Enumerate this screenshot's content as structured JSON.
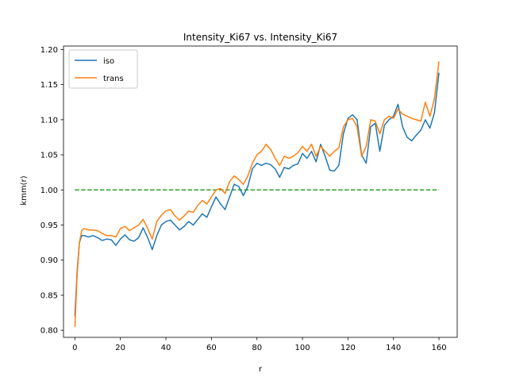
{
  "chart_data": {
    "type": "line",
    "title": "Intensity_Ki67 vs. Intensity_Ki67",
    "xlabel": "r",
    "ylabel": "kmm(r)",
    "xlim": [
      -5,
      168
    ],
    "ylim": [
      0.79,
      1.205
    ],
    "xticks": [
      0,
      20,
      40,
      60,
      80,
      100,
      120,
      140,
      160
    ],
    "yticks": [
      0.8,
      0.85,
      0.9,
      0.95,
      1.0,
      1.05,
      1.1,
      1.15,
      1.2
    ],
    "ytick_labels": [
      "0.80",
      "0.85",
      "0.90",
      "0.95",
      "1.00",
      "1.05",
      "1.10",
      "1.15",
      "1.20"
    ],
    "grid": false,
    "legend_position": "top-left",
    "series": [
      {
        "name": "iso",
        "color": "#1f77b4",
        "x": [
          0,
          1,
          2,
          3,
          4,
          6,
          8,
          10,
          12,
          14,
          16,
          18,
          20,
          22,
          24,
          26,
          28,
          30,
          32,
          34,
          36,
          38,
          40,
          42,
          44,
          46,
          48,
          50,
          52,
          54,
          56,
          58,
          60,
          62,
          64,
          66,
          68,
          70,
          72,
          74,
          76,
          78,
          80,
          82,
          84,
          86,
          88,
          90,
          92,
          94,
          96,
          98,
          100,
          102,
          104,
          106,
          108,
          110,
          112,
          114,
          116,
          118,
          120,
          122,
          124,
          126,
          128,
          130,
          132,
          134,
          136,
          138,
          140,
          142,
          144,
          146,
          148,
          150,
          152,
          154,
          156,
          158,
          160
        ],
        "y": [
          0.82,
          0.885,
          0.925,
          0.935,
          0.935,
          0.933,
          0.935,
          0.932,
          0.928,
          0.93,
          0.929,
          0.921,
          0.93,
          0.936,
          0.929,
          0.927,
          0.932,
          0.946,
          0.932,
          0.915,
          0.935,
          0.95,
          0.955,
          0.957,
          0.95,
          0.943,
          0.948,
          0.955,
          0.95,
          0.958,
          0.966,
          0.961,
          0.976,
          0.99,
          0.98,
          0.972,
          0.99,
          1.008,
          1.005,
          0.992,
          1.005,
          1.03,
          1.038,
          1.035,
          1.038,
          1.036,
          1.03,
          1.018,
          1.032,
          1.03,
          1.035,
          1.037,
          1.052,
          1.045,
          1.055,
          1.04,
          1.065,
          1.048,
          1.028,
          1.027,
          1.035,
          1.08,
          1.102,
          1.107,
          1.1,
          1.05,
          1.038,
          1.09,
          1.095,
          1.055,
          1.092,
          1.1,
          1.105,
          1.122,
          1.09,
          1.075,
          1.07,
          1.078,
          1.085,
          1.1,
          1.088,
          1.11,
          1.167
        ]
      },
      {
        "name": "trans",
        "color": "#ff7f0e",
        "x": [
          0,
          1,
          2,
          3,
          4,
          6,
          8,
          10,
          12,
          14,
          16,
          18,
          20,
          22,
          24,
          26,
          28,
          30,
          32,
          34,
          36,
          38,
          40,
          42,
          44,
          46,
          48,
          50,
          52,
          54,
          56,
          58,
          60,
          62,
          64,
          66,
          68,
          70,
          72,
          74,
          76,
          78,
          80,
          82,
          84,
          86,
          88,
          90,
          92,
          94,
          96,
          98,
          100,
          102,
          104,
          106,
          108,
          110,
          112,
          114,
          116,
          118,
          120,
          122,
          124,
          126,
          128,
          130,
          132,
          134,
          136,
          138,
          140,
          142,
          144,
          146,
          148,
          150,
          152,
          154,
          156,
          158,
          160
        ],
        "y": [
          0.805,
          0.88,
          0.925,
          0.942,
          0.945,
          0.943,
          0.943,
          0.942,
          0.938,
          0.935,
          0.935,
          0.933,
          0.945,
          0.948,
          0.942,
          0.946,
          0.95,
          0.958,
          0.945,
          0.93,
          0.955,
          0.964,
          0.97,
          0.972,
          0.963,
          0.957,
          0.963,
          0.97,
          0.968,
          0.978,
          0.985,
          0.98,
          0.99,
          1.0,
          1.002,
          0.995,
          1.012,
          1.02,
          1.015,
          1.008,
          1.02,
          1.038,
          1.05,
          1.055,
          1.065,
          1.058,
          1.045,
          1.035,
          1.048,
          1.045,
          1.048,
          1.053,
          1.062,
          1.055,
          1.065,
          1.048,
          1.062,
          1.055,
          1.048,
          1.055,
          1.06,
          1.09,
          1.1,
          1.102,
          1.09,
          1.048,
          1.062,
          1.1,
          1.098,
          1.08,
          1.1,
          1.105,
          1.102,
          1.115,
          1.108,
          1.105,
          1.102,
          1.1,
          1.098,
          1.125,
          1.105,
          1.13,
          1.183
        ]
      },
      {
        "name": "",
        "color": "#2ca02c",
        "dashed": true,
        "x": [
          0,
          160
        ],
        "y": [
          1.0,
          1.0
        ]
      }
    ]
  }
}
